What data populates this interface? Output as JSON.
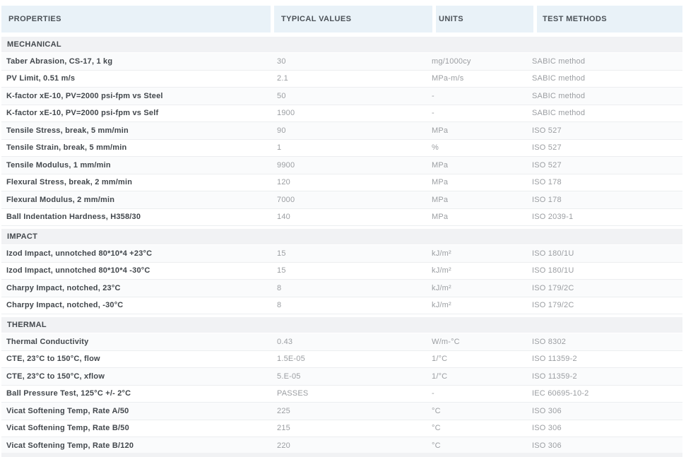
{
  "table": {
    "columns": [
      {
        "key": "property",
        "label": "PROPERTIES"
      },
      {
        "key": "value",
        "label": "TYPICAL VALUES"
      },
      {
        "key": "unit",
        "label": "UNITS"
      },
      {
        "key": "method",
        "label": "TEST METHODS"
      }
    ],
    "sections": [
      {
        "title": "MECHANICAL",
        "rows": [
          {
            "property": "Taber Abrasion, CS-17, 1 kg",
            "value": "30",
            "unit": "mg/1000cy",
            "method": "SABIC method"
          },
          {
            "property": "PV Limit, 0.51 m/s",
            "value": "2.1",
            "unit": "MPa-m/s",
            "method": "SABIC method"
          },
          {
            "property": "K-factor xE-10, PV=2000 psi-fpm vs Steel",
            "value": "50",
            "unit": "-",
            "method": "SABIC method"
          },
          {
            "property": "K-factor xE-10, PV=2000 psi-fpm vs Self",
            "value": "1900",
            "unit": "-",
            "method": "SABIC method"
          },
          {
            "property": "Tensile Stress, break, 5 mm/min",
            "value": "90",
            "unit": "MPa",
            "method": "ISO 527"
          },
          {
            "property": "Tensile Strain, break, 5 mm/min",
            "value": "1",
            "unit": "%",
            "method": "ISO 527"
          },
          {
            "property": "Tensile Modulus, 1 mm/min",
            "value": "9900",
            "unit": "MPa",
            "method": "ISO 527"
          },
          {
            "property": "Flexural Stress, break, 2 mm/min",
            "value": "120",
            "unit": "MPa",
            "method": "ISO 178"
          },
          {
            "property": "Flexural Modulus, 2 mm/min",
            "value": "7000",
            "unit": "MPa",
            "method": "ISO 178"
          },
          {
            "property": "Ball Indentation Hardness, H358/30",
            "value": "140",
            "unit": "MPa",
            "method": "ISO 2039-1"
          }
        ]
      },
      {
        "title": "IMPACT",
        "rows": [
          {
            "property": "Izod Impact, unnotched 80*10*4 +23°C",
            "value": "15",
            "unit": "kJ/m²",
            "method": "ISO 180/1U"
          },
          {
            "property": "Izod Impact, unnotched 80*10*4 -30°C",
            "value": "15",
            "unit": "kJ/m²",
            "method": "ISO 180/1U"
          },
          {
            "property": "Charpy Impact, notched, 23°C",
            "value": "8",
            "unit": "kJ/m²",
            "method": "ISO 179/2C"
          },
          {
            "property": "Charpy Impact, notched, -30°C",
            "value": "8",
            "unit": "kJ/m²",
            "method": "ISO 179/2C"
          }
        ]
      },
      {
        "title": "THERMAL",
        "rows": [
          {
            "property": "Thermal Conductivity",
            "value": "0.43",
            "unit": "W/m-°C",
            "method": "ISO 8302"
          },
          {
            "property": "CTE, 23°C to 150°C, flow",
            "value": "1.5E-05",
            "unit": "1/°C",
            "method": "ISO 11359-2"
          },
          {
            "property": "CTE, 23°C to 150°C, xflow",
            "value": "5.E-05",
            "unit": "1/°C",
            "method": "ISO 11359-2"
          },
          {
            "property": "Ball Pressure Test, 125°C +/- 2°C",
            "value": "PASSES",
            "unit": "-",
            "method": "IEC 60695-10-2"
          },
          {
            "property": "Vicat Softening Temp, Rate A/50",
            "value": "225",
            "unit": "°C",
            "method": "ISO 306"
          },
          {
            "property": "Vicat Softening Temp, Rate B/50",
            "value": "215",
            "unit": "°C",
            "method": "ISO 306"
          },
          {
            "property": "Vicat Softening Temp, Rate B/120",
            "value": "220",
            "unit": "°C",
            "method": "ISO 306"
          }
        ]
      }
    ]
  },
  "colors": {
    "header_bg": "#e9f2f8",
    "section_bg": "#f1f2f4",
    "header_text": "#4b5157",
    "property_text": "#42474c",
    "value_text": "#9b9ea2",
    "row_border": "#eceef0"
  }
}
